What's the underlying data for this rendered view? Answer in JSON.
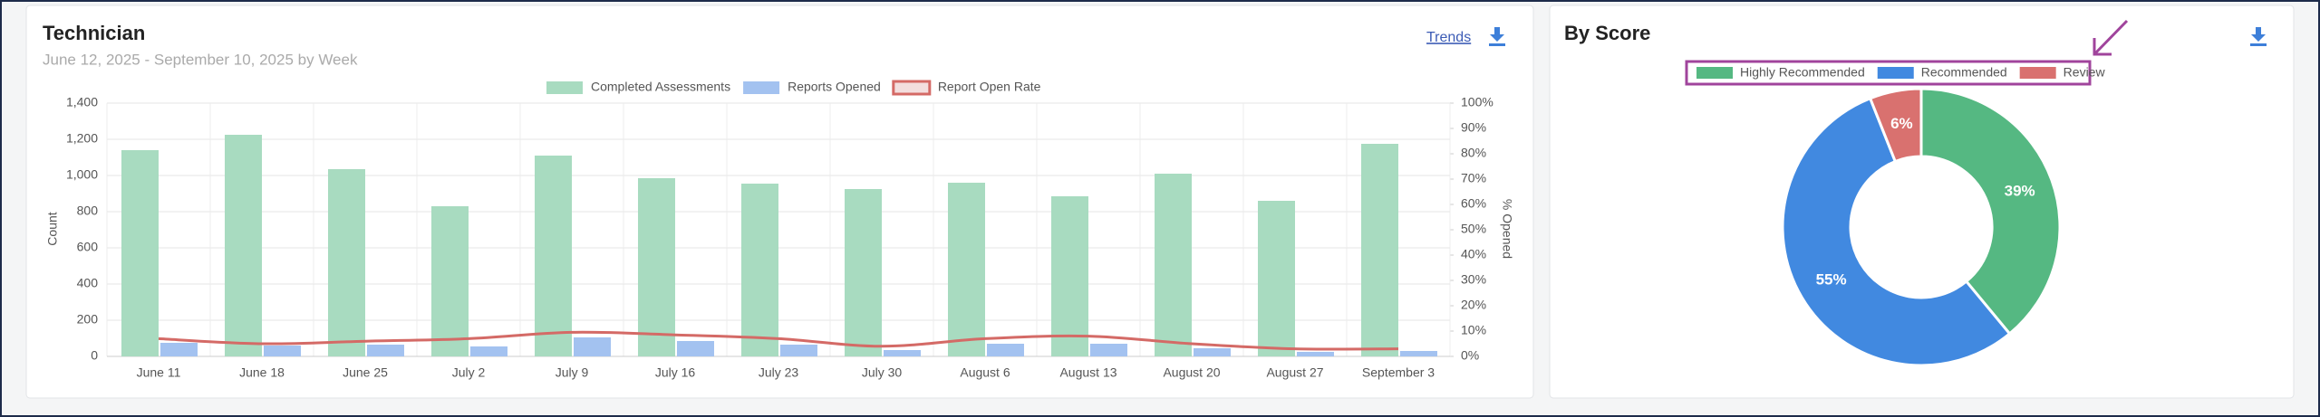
{
  "chart_data": [
    {
      "type": "bar",
      "title": "Technician",
      "subtitle": "June 12, 2025 - September 10, 2025 by Week",
      "link": "Trends",
      "categories": [
        "June 11",
        "June 18",
        "June 25",
        "July 2",
        "July 9",
        "July 16",
        "July 23",
        "July 30",
        "August 6",
        "August 13",
        "August 20",
        "August 27",
        "September 3"
      ],
      "series": [
        {
          "name": "Completed Assessments",
          "color": "#a8dbc0",
          "values": [
            1140,
            1225,
            1035,
            830,
            1110,
            985,
            955,
            925,
            960,
            885,
            1010,
            860,
            1175
          ]
        },
        {
          "name": "Reports Opened",
          "color": "#a3c2f0",
          "values": [
            75,
            60,
            65,
            55,
            105,
            85,
            65,
            35,
            70,
            70,
            45,
            25,
            30
          ]
        },
        {
          "name": "Report Open Rate",
          "color": "#d46a66",
          "type": "line",
          "axis": "y2",
          "values": [
            7,
            5,
            6,
            7,
            9.5,
            8.5,
            7,
            4,
            7,
            8,
            5,
            3,
            3
          ]
        }
      ],
      "ylabel": "Count",
      "y2label": "% Opened",
      "ylim": [
        0,
        1400
      ],
      "yticks": [
        0,
        200,
        400,
        600,
        800,
        {
          "value": 1000,
          "label": "1,000"
        },
        {
          "value": 1200,
          "label": "1,200"
        },
        {
          "value": 1400,
          "label": "1,400"
        }
      ],
      "y2lim": [
        0,
        100
      ],
      "y2ticks": [
        {
          "value": 0,
          "label": "0%"
        },
        {
          "value": 10,
          "label": "10%"
        },
        {
          "value": 20,
          "label": "20%"
        },
        {
          "value": 30,
          "label": "30%"
        },
        {
          "value": 40,
          "label": "40%"
        },
        {
          "value": 50,
          "label": "50%"
        },
        {
          "value": 60,
          "label": "60%"
        },
        {
          "value": 70,
          "label": "70%"
        },
        {
          "value": 80,
          "label": "80%"
        },
        {
          "value": 90,
          "label": "90%"
        },
        {
          "value": 100,
          "label": "100%"
        }
      ],
      "grid": true
    },
    {
      "type": "pie",
      "title": "By Score",
      "donut": true,
      "categories": [
        "Highly Recommended",
        "Recommended",
        "Review"
      ],
      "values": [
        39,
        55,
        6
      ],
      "value_labels": [
        "39%",
        "55%",
        "6%"
      ],
      "colors": [
        "#55b882",
        "#4189e0",
        "#d9716f"
      ]
    }
  ]
}
